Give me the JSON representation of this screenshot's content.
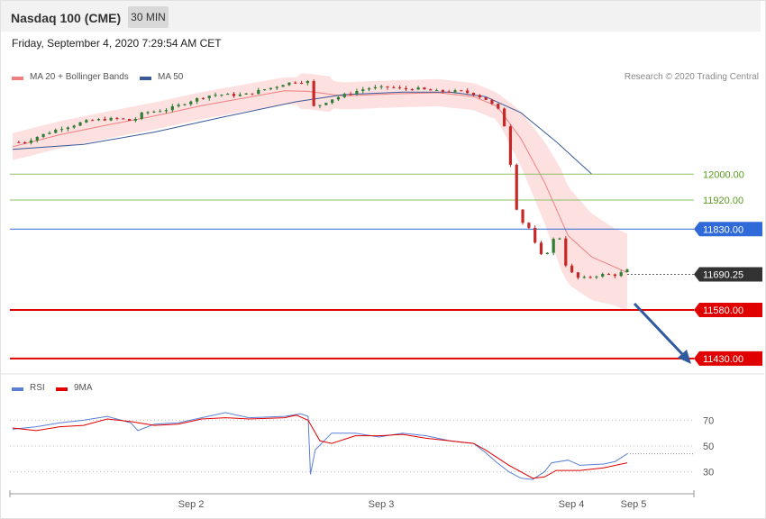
{
  "header": {
    "title": "Nasdaq 100 (CME)",
    "timeframe": "30 MIN",
    "timestamp": "Friday, September 4, 2020 7:29:54 AM CET"
  },
  "legend": {
    "ma20_bb": "MA 20 + Bollinger Bands",
    "ma50": "MA 50",
    "rsi": "RSI",
    "rsi_ma": "9MA"
  },
  "credit": "Research © 2020 Trading Central",
  "colors": {
    "bull_candle": "#2e7d32",
    "bear_candle": "#c62828",
    "bollinger_fill": "#fddada",
    "ma20": "#f08080",
    "ma50": "#3a5a98",
    "resistance": "#8fc064",
    "pivot": "#2f6ad8",
    "support": "#e00000",
    "arrow": "#2f5aa0",
    "rsi_line": "#5b7fd6",
    "rsi_ma_line": "#e00000"
  },
  "chart_data": [
    {
      "type": "candlestick",
      "title": "Nasdaq 100 (CME)",
      "timeframe": "30 MIN",
      "x_labels": [
        "Sep 2",
        "Sep 3",
        "Sep 4",
        "Sep 5"
      ],
      "ylim": [
        11410,
        12260
      ],
      "levels": [
        {
          "value": 12000.0,
          "label": "12000.00",
          "kind": "resistance"
        },
        {
          "value": 11920.0,
          "label": "11920.00",
          "kind": "resistance"
        },
        {
          "value": 11830.0,
          "label": "11830.00",
          "kind": "pivot"
        },
        {
          "value": 11690.25,
          "label": "11690.25",
          "kind": "last"
        },
        {
          "value": 11580.0,
          "label": "11580.00",
          "kind": "support"
        },
        {
          "value": 11430.0,
          "label": "11430.00",
          "kind": "support"
        }
      ],
      "close_path": [
        [
          0,
          12099
        ],
        [
          5,
          12098
        ],
        [
          10,
          12115
        ],
        [
          15,
          12128
        ],
        [
          20,
          12142
        ],
        [
          25,
          12150
        ],
        [
          30,
          12162
        ],
        [
          35,
          12168
        ],
        [
          40,
          12170
        ],
        [
          45,
          12172
        ],
        [
          50,
          12165
        ],
        [
          53,
          12175
        ],
        [
          55,
          12190
        ],
        [
          60,
          12194
        ],
        [
          65,
          12200
        ],
        [
          70,
          12212
        ],
        [
          75,
          12226
        ],
        [
          80,
          12238
        ],
        [
          85,
          12246
        ],
        [
          90,
          12246
        ],
        [
          95,
          12244
        ],
        [
          100,
          12248
        ],
        [
          105,
          12260
        ],
        [
          110,
          12268
        ],
        [
          115,
          12280
        ],
        [
          120,
          12286
        ],
        [
          125,
          12286
        ],
        [
          126,
          12206
        ],
        [
          130,
          12215
        ],
        [
          135,
          12232
        ],
        [
          140,
          12244
        ],
        [
          145,
          12256
        ],
        [
          150,
          12266
        ],
        [
          155,
          12267
        ],
        [
          160,
          12270
        ],
        [
          165,
          12262
        ],
        [
          170,
          12266
        ],
        [
          175,
          12260
        ],
        [
          180,
          12256
        ],
        [
          185,
          12256
        ],
        [
          190,
          12256
        ],
        [
          195,
          12248
        ],
        [
          200,
          12232
        ],
        [
          203,
          12215
        ],
        [
          206,
          12196
        ],
        [
          208,
          12150
        ],
        [
          210,
          12080
        ],
        [
          212,
          11920
        ],
        [
          215,
          11855
        ],
        [
          218,
          11840
        ],
        [
          220,
          11810
        ],
        [
          222,
          11760
        ],
        [
          225,
          11740
        ],
        [
          228,
          11790
        ],
        [
          230,
          11810
        ],
        [
          232,
          11800
        ],
        [
          234,
          11720
        ],
        [
          237,
          11690
        ],
        [
          240,
          11675
        ],
        [
          245,
          11684
        ],
        [
          250,
          11690
        ],
        [
          255,
          11688
        ],
        [
          260,
          11702
        ]
      ],
      "ma20_path": [
        [
          0,
          12085
        ],
        [
          20,
          12122
        ],
        [
          40,
          12152
        ],
        [
          60,
          12180
        ],
        [
          80,
          12212
        ],
        [
          100,
          12238
        ],
        [
          115,
          12258
        ],
        [
          125,
          12256
        ],
        [
          140,
          12242
        ],
        [
          160,
          12248
        ],
        [
          180,
          12252
        ],
        [
          195,
          12240
        ],
        [
          205,
          12210
        ],
        [
          215,
          12110
        ],
        [
          225,
          11975
        ],
        [
          235,
          11810
        ],
        [
          245,
          11744
        ],
        [
          260,
          11696
        ]
      ],
      "ma50_path": [
        [
          0,
          12077
        ],
        [
          30,
          12092
        ],
        [
          60,
          12130
        ],
        [
          90,
          12178
        ],
        [
          120,
          12224
        ],
        [
          140,
          12246
        ],
        [
          165,
          12254
        ],
        [
          185,
          12254
        ],
        [
          200,
          12240
        ],
        [
          215,
          12190
        ],
        [
          230,
          12100
        ],
        [
          245,
          12000
        ]
      ]
    },
    {
      "type": "line",
      "title": "RSI",
      "series": [
        {
          "name": "RSI",
          "values": [
            [
              0,
              63
            ],
            [
              10,
              65
            ],
            [
              20,
              68
            ],
            [
              30,
              70
            ],
            [
              40,
              73
            ],
            [
              50,
              68
            ],
            [
              53,
              62
            ],
            [
              60,
              67
            ],
            [
              70,
              68
            ],
            [
              80,
              72
            ],
            [
              90,
              76
            ],
            [
              100,
              72
            ],
            [
              115,
              73
            ],
            [
              122,
              75
            ],
            [
              125,
              73
            ],
            [
              126,
              28
            ],
            [
              128,
              47
            ],
            [
              135,
              60
            ],
            [
              145,
              60
            ],
            [
              155,
              57
            ],
            [
              165,
              60
            ],
            [
              175,
              58
            ],
            [
              185,
              54
            ],
            [
              195,
              52
            ],
            [
              200,
              45
            ],
            [
              205,
              37
            ],
            [
              210,
              30
            ],
            [
              215,
              25
            ],
            [
              220,
              24
            ],
            [
              225,
              30
            ],
            [
              228,
              37
            ],
            [
              235,
              39
            ],
            [
              240,
              35
            ],
            [
              250,
              36
            ],
            [
              255,
              38
            ],
            [
              260,
              44
            ]
          ]
        },
        {
          "name": "9MA",
          "values": [
            [
              0,
              64
            ],
            [
              10,
              62
            ],
            [
              20,
              65
            ],
            [
              30,
              66
            ],
            [
              40,
              71
            ],
            [
              50,
              69
            ],
            [
              60,
              66
            ],
            [
              70,
              67
            ],
            [
              80,
              71
            ],
            [
              90,
              72
            ],
            [
              100,
              71
            ],
            [
              115,
              72
            ],
            [
              120,
              74
            ],
            [
              125,
              70
            ],
            [
              130,
              54
            ],
            [
              135,
              52
            ],
            [
              145,
              58
            ],
            [
              155,
              58
            ],
            [
              165,
              59
            ],
            [
              175,
              56
            ],
            [
              185,
              54
            ],
            [
              195,
              52
            ],
            [
              200,
              47
            ],
            [
              210,
              35
            ],
            [
              220,
              25
            ],
            [
              225,
              26
            ],
            [
              230,
              31
            ],
            [
              240,
              31
            ],
            [
              250,
              33
            ],
            [
              260,
              37
            ]
          ]
        }
      ],
      "ylim": [
        15,
        85
      ],
      "ticks": [
        {
          "value": 70,
          "label": "70"
        },
        {
          "value": 50,
          "label": "50"
        },
        {
          "value": 30,
          "label": "30"
        }
      ]
    }
  ]
}
